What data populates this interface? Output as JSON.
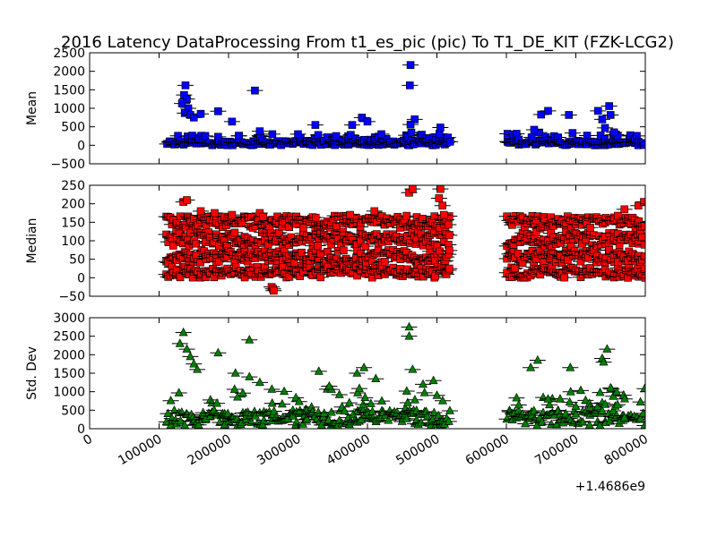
{
  "figure": {
    "title": "2016 Latency DataProcessing From t1_es_pic (pic) To T1_DE_KIT (FZK-LCG2)",
    "x_offset_label": "+1.4686e9",
    "x_ticks": [
      "0",
      "100000",
      "200000",
      "300000",
      "400000",
      "500000",
      "600000",
      "700000",
      "800000"
    ]
  },
  "chart_data": [
    {
      "type": "scatter",
      "ylabel": "Mean",
      "ylim": [
        -500,
        2500
      ],
      "y_ticks": [
        "−500",
        "0",
        "500",
        "1000",
        "1500",
        "2000",
        "2500"
      ],
      "xlim": [
        0,
        800000
      ],
      "x_offset": 1468600000,
      "marker": "square",
      "color": "#0000ff",
      "error_bars": "horizontal",
      "series": [
        {
          "segments": [
            [
              110000,
              520000
            ],
            [
              600000,
              800000
            ]
          ],
          "baseline_mean": 60,
          "baseline_spread": 60,
          "outliers": [
            [
              138000,
              1620
            ],
            [
              136000,
              1360
            ],
            [
              140000,
              1250
            ],
            [
              133000,
              1130
            ],
            [
              142000,
              1000
            ],
            [
              137000,
              870
            ],
            [
              145000,
              820
            ],
            [
              150000,
              750
            ],
            [
              160000,
              850
            ],
            [
              185000,
              920
            ],
            [
              205000,
              640
            ],
            [
              215000,
              260
            ],
            [
              238000,
              1480
            ],
            [
              245000,
              380
            ],
            [
              263000,
              300
            ],
            [
              300000,
              300
            ],
            [
              325000,
              550
            ],
            [
              355000,
              250
            ],
            [
              378000,
              550
            ],
            [
              392000,
              750
            ],
            [
              400000,
              640
            ],
            [
              420000,
              300
            ],
            [
              462000,
              2170
            ],
            [
              461000,
              1620
            ],
            [
              468000,
              700
            ],
            [
              462000,
              560
            ],
            [
              505000,
              480
            ],
            [
              640000,
              420
            ],
            [
              650000,
              830
            ],
            [
              660000,
              930
            ],
            [
              690000,
              820
            ],
            [
              732000,
              930
            ],
            [
              738000,
              700
            ],
            [
              742000,
              470
            ],
            [
              748000,
              1060
            ],
            [
              750000,
              820
            ],
            [
              755000,
              350
            ]
          ]
        }
      ]
    },
    {
      "type": "scatter",
      "ylabel": "Median",
      "ylim": [
        -50,
        250
      ],
      "y_ticks": [
        "−50",
        "0",
        "50",
        "100",
        "150",
        "200",
        "250"
      ],
      "xlim": [
        0,
        800000
      ],
      "x_offset": 1468600000,
      "marker": "square",
      "color": "#ff0000",
      "error_bars": "horizontal",
      "series": [
        {
          "segments": [
            [
              110000,
              520000
            ],
            [
              600000,
              800000
            ]
          ],
          "bands": [
            [
              0,
              30
            ],
            [
              40,
              75
            ],
            [
              85,
              125
            ],
            [
              135,
              168
            ]
          ],
          "outliers": [
            [
              135000,
              205
            ],
            [
              140000,
              210
            ],
            [
              160000,
              180
            ],
            [
              180000,
              175
            ],
            [
              205000,
              170
            ],
            [
              245000,
              175
            ],
            [
              250000,
              165
            ],
            [
              262000,
              -25
            ],
            [
              264000,
              -30
            ],
            [
              265000,
              -35
            ],
            [
              375000,
              170
            ],
            [
              410000,
              180
            ],
            [
              460000,
              230
            ],
            [
              465000,
              240
            ],
            [
              505000,
              240
            ],
            [
              503000,
              215
            ],
            [
              508000,
              195
            ],
            [
              510000,
              170
            ],
            [
              770000,
              185
            ],
            [
              790000,
              195
            ],
            [
              798000,
              205
            ],
            [
              800000,
              0
            ]
          ]
        }
      ]
    },
    {
      "type": "scatter",
      "ylabel": "Std. Dev",
      "ylim": [
        0,
        3000
      ],
      "y_ticks": [
        "0",
        "500",
        "1000",
        "1500",
        "2000",
        "2500",
        "3000"
      ],
      "xlim": [
        0,
        800000
      ],
      "x_offset": 1468600000,
      "marker": "triangle",
      "color": "#008000",
      "error_bars": "horizontal",
      "series": [
        {
          "segments": [
            [
              110000,
              520000
            ],
            [
              600000,
              800000
            ]
          ],
          "peaks": [
            [
              135000,
              2600
            ],
            [
              460000,
              2750
            ],
            [
              460000,
              2500
            ],
            [
              740000,
              2150
            ],
            [
              735000,
              1900
            ]
          ],
          "outliers": [
            [
              135000,
              2600
            ],
            [
              130000,
              2300
            ],
            [
              140000,
              2150
            ],
            [
              145000,
              1950
            ],
            [
              150000,
              1750
            ],
            [
              155000,
              1600
            ],
            [
              185000,
              2050
            ],
            [
              230000,
              2400
            ],
            [
              210000,
              1500
            ],
            [
              230000,
              1400
            ],
            [
              245000,
              1250
            ],
            [
              330000,
              1550
            ],
            [
              345000,
              1150
            ],
            [
              385000,
              1500
            ],
            [
              395000,
              1650
            ],
            [
              412000,
              1350
            ],
            [
              460000,
              2750
            ],
            [
              460000,
              2500
            ],
            [
              465000,
              1600
            ],
            [
              480000,
              1200
            ],
            [
              495000,
              1300
            ],
            [
              500000,
              900
            ],
            [
              635000,
              1650
            ],
            [
              645000,
              1850
            ],
            [
              660000,
              800
            ],
            [
              692000,
              1650
            ],
            [
              700000,
              600
            ],
            [
              738000,
              1900
            ],
            [
              740000,
              1800
            ],
            [
              745000,
              2150
            ],
            [
              750000,
              1100
            ],
            [
              760000,
              650
            ],
            [
              770000,
              300
            ]
          ]
        }
      ]
    }
  ]
}
